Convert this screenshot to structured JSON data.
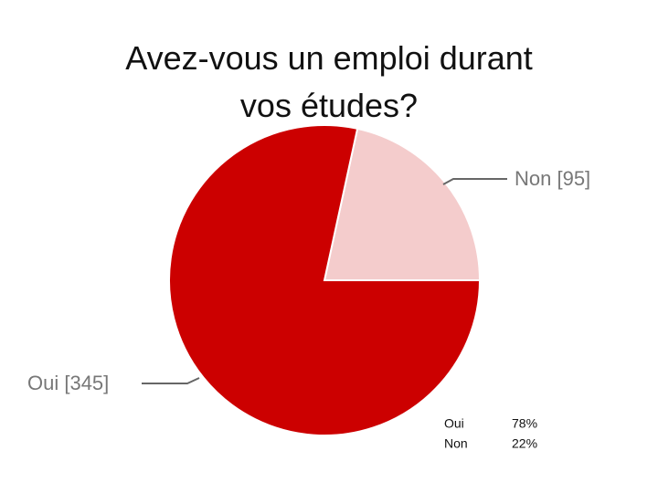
{
  "chart_data": {
    "type": "pie",
    "title": "Avez-vous un emploi durant vos études?",
    "categories": [
      "Oui",
      "Non"
    ],
    "values": [
      345,
      95
    ],
    "value_labels": [
      "Oui [345]",
      "Non [95]"
    ],
    "colors": [
      "#cc0000",
      "#f4cccc"
    ]
  },
  "summary": {
    "rows": [
      [
        "Oui",
        "78%"
      ],
      [
        "Non",
        "22%"
      ]
    ]
  }
}
